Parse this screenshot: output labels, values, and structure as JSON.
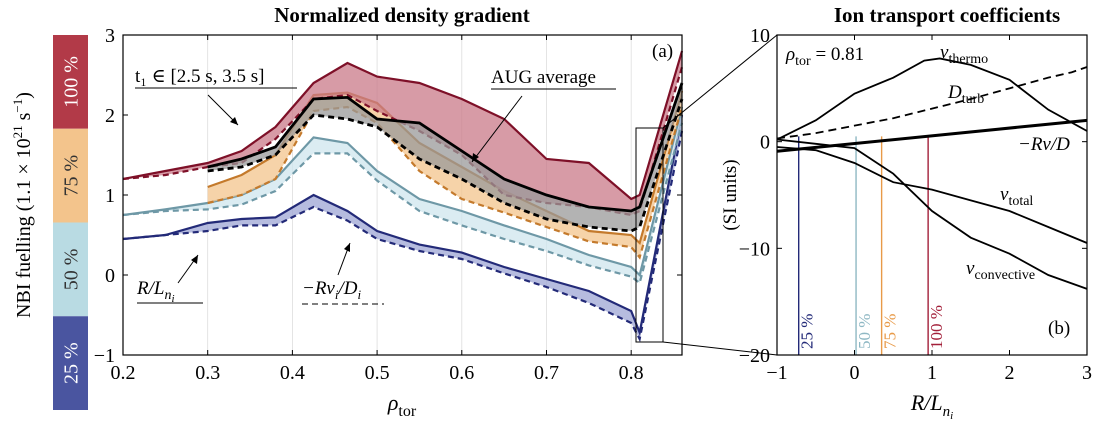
{
  "colors": {
    "c25": "#4a55a0",
    "c25_line": "#232a78",
    "c25_fill": "#9ea6d4",
    "c50": "#8fb8c4",
    "c50_line": "#6e98a6",
    "c50_fill": "#cfe6ee",
    "c75": "#e89a48",
    "c75_line": "#c47a2c",
    "c75_fill": "#f3c48c",
    "c100": "#a3203a",
    "c100_line": "#7e1028",
    "c100_fill": "#c97a88",
    "black": "#000000",
    "gray_fill": "#9a9a9a"
  },
  "colorbar": {
    "label": "NBI fuelling (1.1 × 10",
    "label_sup": "21",
    "label_unit": " s",
    "label_sup2": "−1",
    "label_close": ")",
    "segments": [
      {
        "text": "25 %",
        "color": "#4a55a0",
        "textcolor": "#ffffff"
      },
      {
        "text": "50 %",
        "color": "#b9dbe3",
        "textcolor": "#333333"
      },
      {
        "text": "75 %",
        "color": "#f3c48c",
        "textcolor": "#333333"
      },
      {
        "text": "100 %",
        "color": "#b23a48",
        "textcolor": "#ffffff"
      }
    ]
  },
  "chart_data": [
    {
      "type": "line",
      "title": "Normalized density gradient",
      "xlabel": "ρ",
      "xlabel_sub": "tor",
      "xlim": [
        0.2,
        0.86
      ],
      "ylim": [
        -1,
        3
      ],
      "xticks": [
        "0.2",
        "0.3",
        "0.4",
        "0.5",
        "0.6",
        "0.7",
        "0.8"
      ],
      "xtick_values": [
        0.2,
        0.3,
        0.4,
        0.5,
        0.6,
        0.7,
        0.8
      ],
      "yticks": [
        "−1",
        "0",
        "1",
        "2",
        "3"
      ],
      "ytick_values": [
        -1,
        0,
        1,
        2,
        3
      ],
      "panel_label": "(a)",
      "annotations": {
        "t1": "t₁ ∈ [2.5 s, 3.5 s]",
        "aug": "AUG average",
        "rln": "R/L",
        "rln_sub": "n",
        "rln_subsub": "i",
        "rvd": "−Rv",
        "rvd_sub": "i",
        "rvd_mid": "/D",
        "rvd_sub2": "i"
      },
      "series": [
        {
          "name": "25 %",
          "key": "c25",
          "x": [
            0.2,
            0.25,
            0.3,
            0.34,
            0.38,
            0.425,
            0.465,
            0.5,
            0.55,
            0.6,
            0.65,
            0.7,
            0.75,
            0.8,
            0.81,
            0.86
          ],
          "upper": [
            0.45,
            0.5,
            0.65,
            0.7,
            0.72,
            1.0,
            0.8,
            0.55,
            0.38,
            0.28,
            0.1,
            -0.05,
            -0.2,
            -0.45,
            -0.72,
            2.0
          ],
          "lower": [
            0.45,
            0.5,
            0.55,
            0.62,
            0.62,
            0.85,
            0.68,
            0.45,
            0.3,
            0.2,
            0.02,
            -0.15,
            -0.35,
            -0.6,
            -0.8,
            1.8
          ]
        },
        {
          "name": "50 %",
          "key": "c50",
          "x": [
            0.2,
            0.25,
            0.3,
            0.34,
            0.38,
            0.425,
            0.465,
            0.5,
            0.55,
            0.6,
            0.65,
            0.7,
            0.75,
            0.8,
            0.81,
            0.86
          ],
          "upper": [
            0.75,
            0.82,
            0.9,
            1.0,
            1.2,
            1.72,
            1.65,
            1.3,
            0.95,
            0.8,
            0.62,
            0.45,
            0.25,
            0.1,
            0.0,
            2.1
          ],
          "lower": [
            0.75,
            0.8,
            0.82,
            0.88,
            1.05,
            1.52,
            1.52,
            1.18,
            0.8,
            0.62,
            0.45,
            0.3,
            0.12,
            -0.02,
            -0.1,
            1.9
          ]
        },
        {
          "name": "75 %",
          "key": "c75",
          "x": [
            0.3,
            0.34,
            0.38,
            0.425,
            0.465,
            0.5,
            0.55,
            0.6,
            0.65,
            0.7,
            0.75,
            0.8,
            0.81,
            0.86
          ],
          "upper": [
            1.1,
            1.25,
            1.5,
            2.25,
            2.28,
            2.15,
            1.65,
            1.35,
            1.05,
            0.8,
            0.55,
            0.5,
            0.4,
            2.3
          ],
          "lower": [
            0.9,
            1.0,
            1.2,
            2.05,
            2.1,
            1.9,
            1.3,
            0.95,
            0.78,
            0.6,
            0.42,
            0.35,
            0.22,
            2.1
          ]
        },
        {
          "name": "100 %",
          "key": "c100",
          "x": [
            0.2,
            0.25,
            0.3,
            0.34,
            0.38,
            0.425,
            0.465,
            0.5,
            0.55,
            0.6,
            0.65,
            0.7,
            0.75,
            0.8,
            0.81,
            0.86
          ],
          "upper": [
            1.2,
            1.3,
            1.4,
            1.55,
            1.85,
            2.4,
            2.65,
            2.48,
            2.4,
            2.2,
            1.95,
            1.45,
            1.4,
            0.95,
            1.0,
            2.8
          ],
          "lower": [
            1.2,
            1.25,
            1.35,
            1.4,
            1.7,
            2.2,
            2.25,
            2.05,
            1.8,
            1.5,
            1.0,
            0.9,
            0.85,
            0.75,
            0.8,
            2.6
          ]
        },
        {
          "name": "AUG average",
          "key": "black",
          "x": [
            0.3,
            0.34,
            0.38,
            0.425,
            0.465,
            0.5,
            0.55,
            0.6,
            0.65,
            0.7,
            0.75,
            0.8,
            0.81,
            0.86
          ],
          "upper": [
            1.35,
            1.45,
            1.6,
            2.2,
            2.22,
            1.95,
            1.9,
            1.55,
            1.2,
            1.0,
            0.85,
            0.8,
            0.85,
            2.4
          ],
          "lower": [
            1.3,
            1.35,
            1.5,
            2.0,
            1.95,
            1.85,
            1.45,
            1.2,
            0.9,
            0.7,
            0.6,
            0.55,
            0.6,
            2.2
          ]
        }
      ]
    },
    {
      "type": "line",
      "title": "Ion transport coefficients",
      "xlabel": "R/L",
      "xlabel_sub": "n",
      "xlabel_subsub": "i",
      "ylabel": "(SI units)",
      "xlim": [
        -1,
        3
      ],
      "ylim": [
        -20,
        10
      ],
      "xticks": [
        "−1",
        "0",
        "1",
        "2",
        "3"
      ],
      "xtick_values": [
        -1,
        0,
        1,
        2,
        3
      ],
      "yticks": [
        "−20",
        "−10",
        "0",
        "10"
      ],
      "ytick_values": [
        -20,
        -10,
        0,
        10
      ],
      "panel_label": "(b)",
      "rho_label": "ρ",
      "rho_sub": "tor",
      "rho_value": " = 0.81",
      "vlines": [
        {
          "x": -0.72,
          "text": "25 %",
          "key": "c25_line"
        },
        {
          "x": 0.02,
          "text": "50 %",
          "key": "c50"
        },
        {
          "x": 0.35,
          "text": "75 %",
          "key": "c75"
        },
        {
          "x": 0.95,
          "text": "100 %",
          "key": "c100"
        }
      ],
      "series": [
        {
          "name": "v",
          "sub": "thermo",
          "dash": false,
          "x": [
            -1,
            -0.5,
            0,
            0.5,
            0.9,
            1.1,
            1.5,
            2.0,
            2.5,
            3.0
          ],
          "y": [
            0.2,
            2.0,
            4.5,
            6.0,
            7.6,
            7.8,
            7.2,
            5.8,
            3.0,
            1.0
          ]
        },
        {
          "name": "D",
          "sub": "turb",
          "dash": true,
          "x": [
            -1,
            -0.5,
            0,
            0.5,
            1.0,
            1.5,
            2.0,
            2.5,
            2.8,
            3.0
          ],
          "y": [
            0.3,
            0.8,
            1.5,
            2.2,
            3.1,
            4.0,
            5.0,
            6.0,
            6.5,
            7.0
          ],
          "labeltail": ""
        },
        {
          "name": "−Rv/D",
          "sub": "",
          "dash": false,
          "thick": true,
          "x": [
            -1,
            3
          ],
          "y": [
            -0.9,
            2.0
          ]
        },
        {
          "name": "v",
          "sub": "total",
          "dash": false,
          "x": [
            -1,
            -0.5,
            0,
            0.5,
            1.0,
            1.5,
            2.0,
            2.5,
            3.0
          ],
          "y": [
            -0.5,
            -0.8,
            -2.0,
            -3.8,
            -4.5,
            -5.5,
            -6.5,
            -8.0,
            -9.5
          ]
        },
        {
          "name": "v",
          "sub": "convective",
          "dash": false,
          "x": [
            -1,
            -0.5,
            0,
            0.5,
            1.0,
            1.5,
            2.0,
            2.5,
            3.0
          ],
          "y": [
            0.2,
            -0.2,
            -0.6,
            -3.0,
            -6.5,
            -9.0,
            -10.5,
            -12.5,
            -13.8
          ]
        }
      ]
    }
  ]
}
